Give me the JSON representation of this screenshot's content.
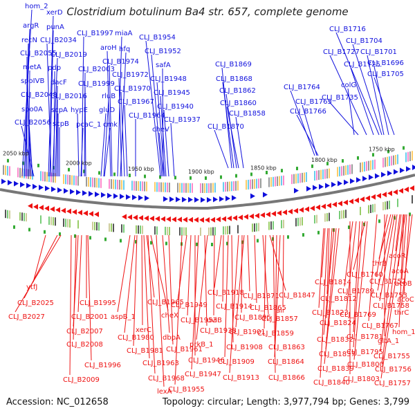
{
  "title": "Clostridium botulinum Ba4 str. 657, complete genome",
  "accession": "Accession: NC_012658",
  "summary": "Topology: circular; Length: 3,977,794 bp; Genes: 3,799",
  "colors": {
    "forward": "#1010dd",
    "reverse": "#ee1111",
    "backbone": "#777777"
  },
  "ticks": [
    "2050 kbp",
    "2000 kbp",
    "1950 kbp",
    "1900 kbp",
    "1850 kbp",
    "1800 kbp",
    "1750 kbp"
  ],
  "forward_genes": [
    "hom_2",
    "argR",
    "recN",
    "CLJ_B2055",
    "metA",
    "spoIVB",
    "CLJ_B2048",
    "spo0A",
    "CLJ_B2056",
    "xerD",
    "punA",
    "CLJ_B2034",
    "CLJ_B2019",
    "pdp",
    "dacF",
    "CLJ_B2016",
    "scpA",
    "scpB",
    "CLJ_B1997",
    "miaA",
    "hfq",
    "aroH",
    "CLJ_B2003",
    "CLJ_B1999",
    "CLJ_B1974",
    "rluB",
    "hypE",
    "pcaC_1",
    "gluD",
    "cmk",
    "CLJ_B1972",
    "CLJ_B1970",
    "CLJ_B1967",
    "CLJ_B1964",
    "CLJ_B1954",
    "CLJ_B1952",
    "safA",
    "CLJ_B1948",
    "CLJ_B1945",
    "CLJ_B1940",
    "CLJ_B1937",
    "cheV",
    "CLJ_B1869",
    "CLJ_B1868",
    "CLJ_B1862",
    "CLJ_B1860",
    "CLJ_B1858",
    "CLJ_B1870",
    "CLJ_B1764",
    "CLJ_B1765",
    "CLJ_B1766",
    "CLJ_B1716",
    "CLJ_B1704",
    "CLJ_B1727",
    "CLJ_B1701",
    "CLJ_B1725",
    "CLJ_B1696",
    "colG",
    "CLJ_B1705",
    "CLJ_B1735"
  ],
  "reverse_genes": [
    "ytfJ",
    "CLJ_B2025",
    "CLJ_B2027",
    "CLJ_B1995",
    "CLJ_B2001",
    "CLJ_B2007",
    "CLJ_B2008",
    "CLJ_B1996",
    "CLJ_B2009",
    "aspB_1",
    "CLJ_B1980",
    "CLJ_B1981",
    "CLJ_B1965",
    "cheX",
    "xerC",
    "dbpA",
    "CLJ_B1963",
    "CLJ_B1968",
    "lexA",
    "CLJ_B1949",
    "CLJ_B1953",
    "CLJ_B1961",
    "CLJ_B1938",
    "prkB_1",
    "CLJ_B1946",
    "CLJ_B1947",
    "CLJ_B1955",
    "CLJ_B1918",
    "CLJ_B1914",
    "uviB",
    "CLJ_B1908",
    "CLJ_B1909",
    "CLJ_B1913",
    "CLJ_B1871",
    "CLJ_B1865",
    "CLJ_B1895",
    "CLJ_B1901",
    "alr",
    "CLJ_B1847",
    "CLJ_B1857",
    "CLJ_B1859",
    "CLJ_B1863",
    "CLJ_B1864",
    "CLJ_B1866",
    "CLJ_B1814",
    "CLJ_B1812",
    "CLJ_B1823",
    "CLJ_B1824",
    "CLJ_B1832",
    "CLJ_B1837",
    "CLJ_B1839",
    "CLJ_B1840",
    "CLJ_B1760",
    "CLJ_B1789",
    "CLJ_B1769",
    "CLJ_B1781",
    "CLJ_B1795",
    "CLJ_B1800",
    "CLJ_B1803",
    "thrB",
    "acoR",
    "acoA",
    "CLJ_B1752",
    "acoB",
    "CLJ_B1753",
    "acoC",
    "CLJ_B1758",
    "thrC",
    "hom_1",
    "CLJ_B1767",
    "gltA_1",
    "CLJ_B1755",
    "CLJ_B1756",
    "CLJ_B1757"
  ]
}
